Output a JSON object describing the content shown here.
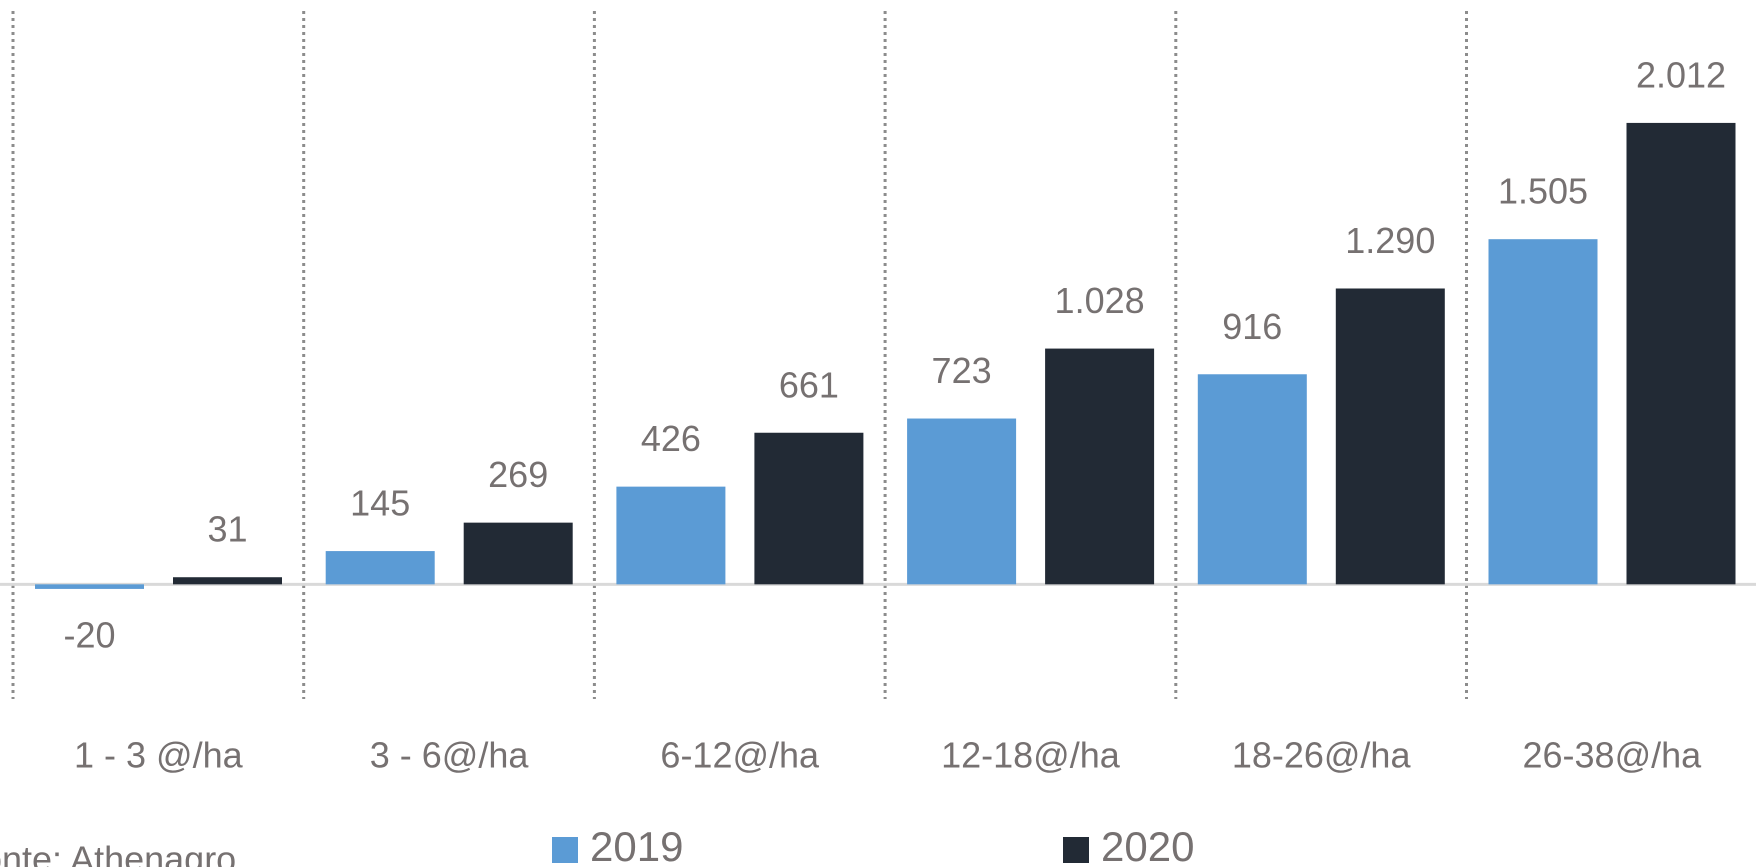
{
  "chart_data": {
    "type": "bar",
    "categories": [
      "1 - 3 @/ha",
      "3 - 6@/ha",
      "6-12@/ha",
      "12-18@/ha",
      "18-26@/ha",
      "26-38@/ha"
    ],
    "series": [
      {
        "name": "2019",
        "color": "#5b9bd5",
        "values": [
          -20,
          145,
          426,
          723,
          916,
          1505
        ],
        "value_labels": [
          "-20",
          "145",
          "426",
          "723",
          "916",
          "1.505"
        ]
      },
      {
        "name": "2020",
        "color": "#222a35",
        "values": [
          31,
          269,
          661,
          1028,
          1290,
          2012
        ],
        "value_labels": [
          "31",
          "269",
          "661",
          "1.028",
          "1.290",
          "2.012"
        ]
      }
    ],
    "ylim": [
      -500,
      2500
    ],
    "source": "Fonte: Athenagro"
  }
}
